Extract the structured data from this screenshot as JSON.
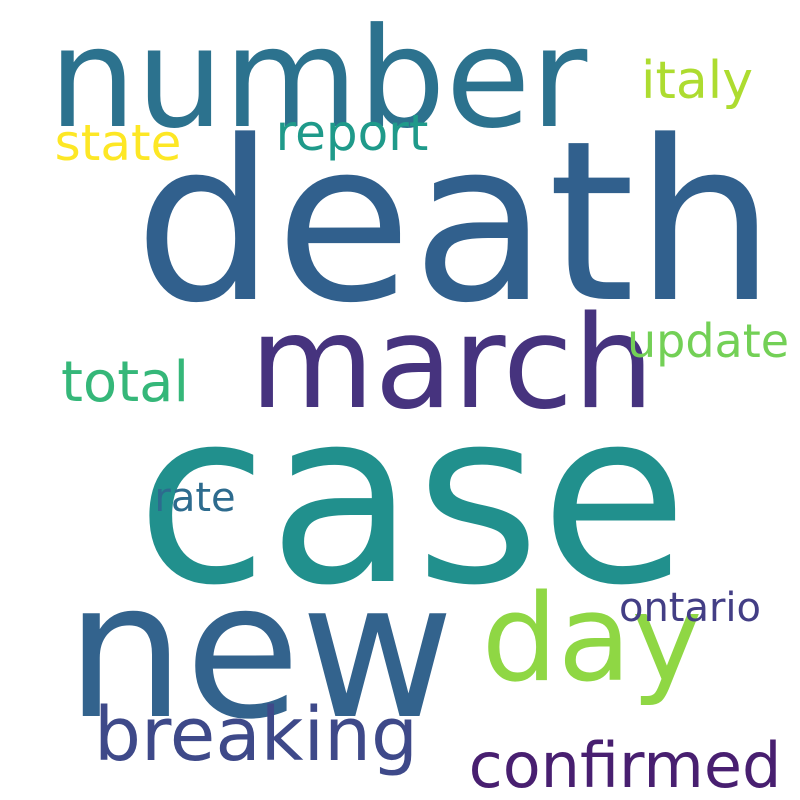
{
  "wordcloud": {
    "background": "#ffffff",
    "words": [
      {
        "key": "number",
        "text": "number",
        "color": "#2c728e"
      },
      {
        "key": "italy",
        "text": "italy",
        "color": "#addc30"
      },
      {
        "key": "state",
        "text": "state",
        "color": "#fde725"
      },
      {
        "key": "report",
        "text": "report",
        "color": "#1f9a8a"
      },
      {
        "key": "death",
        "text": "death",
        "color": "#31608d"
      },
      {
        "key": "march",
        "text": "march",
        "color": "#46337e"
      },
      {
        "key": "update",
        "text": "update",
        "color": "#73d056"
      },
      {
        "key": "total",
        "text": "total",
        "color": "#35b779"
      },
      {
        "key": "case",
        "text": "case",
        "color": "#21908d"
      },
      {
        "key": "rate",
        "text": "rate",
        "color": "#2d6b8e"
      },
      {
        "key": "new",
        "text": "new",
        "color": "#33638d"
      },
      {
        "key": "day",
        "text": "day",
        "color": "#8fd744"
      },
      {
        "key": "ontario",
        "text": "ontario",
        "color": "#433e85"
      },
      {
        "key": "breaking",
        "text": "breaking",
        "color": "#3e4989"
      },
      {
        "key": "confirmed",
        "text": "confirmed",
        "color": "#481f70"
      }
    ]
  }
}
